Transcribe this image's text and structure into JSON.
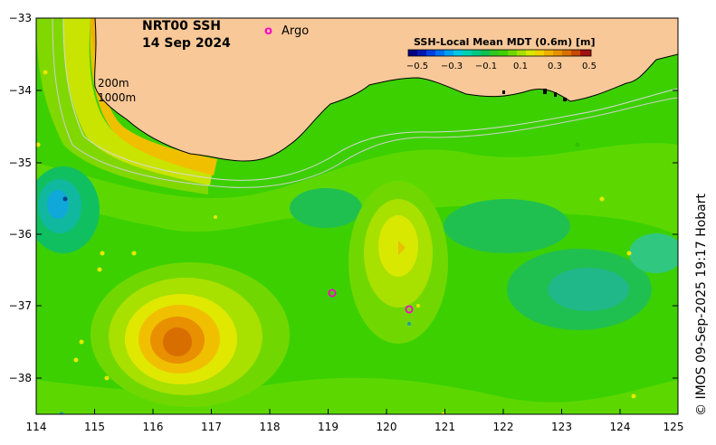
{
  "title": {
    "line1": "NRT00 SSH",
    "line2": "14 Sep 2024"
  },
  "legend": {
    "argo_symbol": "o",
    "argo_label": "Argo"
  },
  "contour_labels": {
    "isobath_200": "200m",
    "isobath_1000": "1000m"
  },
  "colorbar": {
    "title": "SSH-Local Mean MDT (0.6m) [m]",
    "ticks": [
      "−0.5",
      "−0.3",
      "−0.1",
      "0.1",
      "0.3",
      "0.5"
    ]
  },
  "x_axis": {
    "ticks": [
      "114",
      "115",
      "116",
      "117",
      "118",
      "119",
      "120",
      "121",
      "122",
      "123",
      "124",
      "125"
    ]
  },
  "y_axis": {
    "ticks": [
      "−33",
      "−34",
      "−35",
      "−36",
      "−37",
      "−38"
    ]
  },
  "credit": "© IMOS 09-Sep-2025 19:17 Hobart",
  "colors": {
    "land": "#f8c898",
    "ocean_base": "#3cd000",
    "argo": "#ff00cc"
  }
}
